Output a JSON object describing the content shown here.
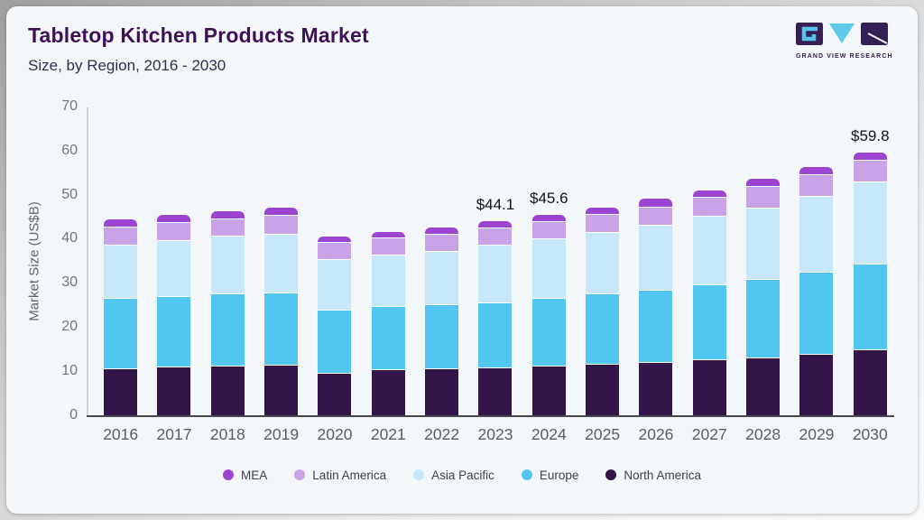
{
  "header": {
    "title": "Tabletop Kitchen Products Market",
    "subtitle": "Size, by Region, 2016 - 2030",
    "logo_caption": "GRAND VIEW RESEARCH"
  },
  "colors": {
    "card_background": "#f4f7fa",
    "title_text": "#3d1254",
    "subtitle_text": "#322c4e",
    "axis_text": "#71757e",
    "x_axis_line": "#47474b",
    "y_axis_line": "#ccd1d8",
    "value_label_text": "#101419",
    "logo_dark": "#342055",
    "logo_cyan": "#57c2ea"
  },
  "chart_data": {
    "type": "bar",
    "stacked": true,
    "title": "Tabletop Kitchen Products Market",
    "subtitle": "Size, by Region, 2016 - 2030",
    "xlabel": "",
    "ylabel": "Market Size (US$B)",
    "ylim": [
      0,
      70
    ],
    "yticks": [
      0,
      10,
      20,
      30,
      40,
      50,
      60,
      70
    ],
    "grid": false,
    "legend_position": "bottom",
    "categories": [
      "2016",
      "2017",
      "2018",
      "2019",
      "2020",
      "2021",
      "2022",
      "2023",
      "2024",
      "2025",
      "2026",
      "2027",
      "2028",
      "2029",
      "2030"
    ],
    "series": [
      {
        "name": "North America",
        "color": "#321549",
        "values": [
          10.6,
          11.0,
          11.2,
          11.4,
          9.6,
          10.4,
          10.6,
          10.8,
          11.1,
          11.5,
          11.9,
          12.6,
          13.1,
          13.9,
          14.9
        ]
      },
      {
        "name": "Europe",
        "color": "#52c5f0",
        "values": [
          15.9,
          16.0,
          16.4,
          16.4,
          14.3,
          14.2,
          14.5,
          14.8,
          15.4,
          16.0,
          16.5,
          17.0,
          17.7,
          18.6,
          19.4
        ]
      },
      {
        "name": "Asia Pacific",
        "color": "#c6e8f8",
        "values": [
          12.1,
          12.6,
          13.0,
          13.3,
          11.4,
          11.8,
          12.1,
          13.0,
          13.5,
          14.0,
          14.8,
          15.6,
          16.3,
          17.3,
          18.6
        ]
      },
      {
        "name": "Latin America",
        "color": "#c9a3e8",
        "values": [
          4.2,
          4.2,
          4.0,
          4.3,
          3.9,
          3.8,
          3.9,
          3.9,
          3.9,
          4.1,
          4.1,
          4.4,
          4.9,
          4.8,
          5.0
        ]
      },
      {
        "name": "MEA",
        "color": "#9c45d2",
        "values": [
          1.8,
          1.8,
          1.9,
          1.9,
          1.5,
          1.5,
          1.6,
          1.6,
          1.7,
          1.7,
          1.9,
          1.6,
          1.8,
          1.8,
          1.9
        ]
      }
    ],
    "totals": [
      44.6,
      45.6,
      46.5,
      47.3,
      40.7,
      41.7,
      42.7,
      44.1,
      45.6,
      47.3,
      49.2,
      51.2,
      53.8,
      56.4,
      59.8
    ],
    "annotations": [
      {
        "category_index": 7,
        "label": "$44.1"
      },
      {
        "category_index": 8,
        "label": "$45.6"
      },
      {
        "category_index": 14,
        "label": "$59.8"
      }
    ],
    "legend": [
      {
        "label": "MEA",
        "color": "#9c45d2"
      },
      {
        "label": "Latin America",
        "color": "#c9a3e8"
      },
      {
        "label": "Asia Pacific",
        "color": "#c6e8f8"
      },
      {
        "label": "Europe",
        "color": "#52c5f0"
      },
      {
        "label": "North America",
        "color": "#321549"
      }
    ]
  }
}
